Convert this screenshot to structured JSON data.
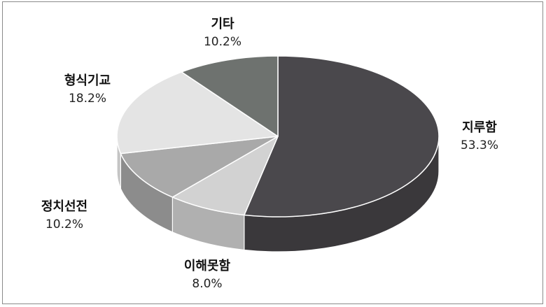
{
  "chart_data": {
    "type": "pie",
    "title": "",
    "categories": [
      "지루함",
      "이해못함",
      "정치선전",
      "형식기교",
      "기타"
    ],
    "values": [
      53.3,
      8.0,
      10.2,
      18.2,
      10.2
    ],
    "value_labels": [
      "53.3%",
      "8.0%",
      "10.2%",
      "18.2%",
      "10.2%"
    ],
    "colors": [
      "#4a484c",
      "#d2d2d2",
      "#a9a9a9",
      "#e4e4e4",
      "#6e726f"
    ],
    "side_colors": [
      "#3a383b",
      "#b0b0b0",
      "#8c8c8c",
      "#c4c4c4",
      "#585a58"
    ],
    "style": "3d-pie",
    "legend": "none"
  }
}
